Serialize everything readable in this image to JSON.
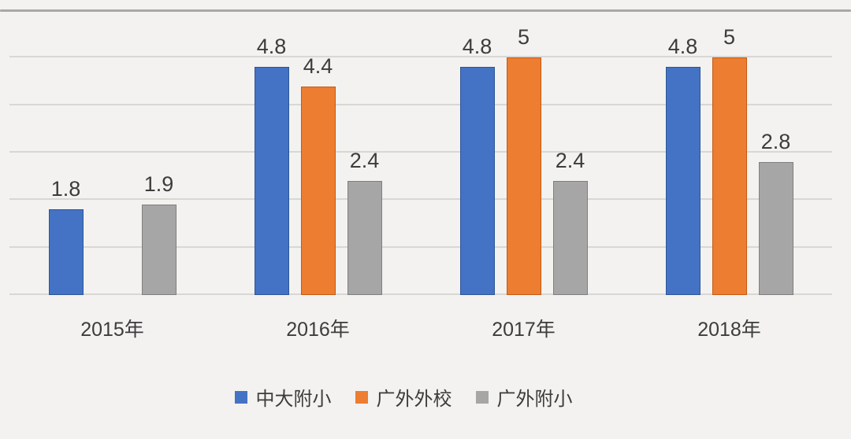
{
  "chart_data": {
    "type": "bar",
    "title": "",
    "xlabel": "",
    "ylabel": "",
    "categories": [
      "2015年",
      "2016年",
      "2017年",
      "2018年"
    ],
    "series": [
      {
        "name": "中大附小",
        "color": "#4472C4",
        "border_color": "#2E5597",
        "values": [
          1.8,
          4.8,
          4.8,
          4.8
        ]
      },
      {
        "name": "广外外校",
        "color": "#ED7D31",
        "border_color": "#C55A11",
        "values": [
          null,
          4.4,
          5,
          5
        ]
      },
      {
        "name": "广外附小",
        "color": "#A6A6A6",
        "border_color": "#7F7F7F",
        "values": [
          1.9,
          2.4,
          2.4,
          2.8
        ]
      }
    ],
    "ylim": [
      0,
      6
    ],
    "gridline_interval": 1,
    "grid": true,
    "value_labels_shown": true,
    "legend_position": "bottom",
    "y_axis_labels_shown": false
  },
  "colors": {
    "background": "#F3F2F0",
    "gridline": "#D8D7D4",
    "top_gridline": "#A9A8A5",
    "text": "#3C3C3C"
  }
}
